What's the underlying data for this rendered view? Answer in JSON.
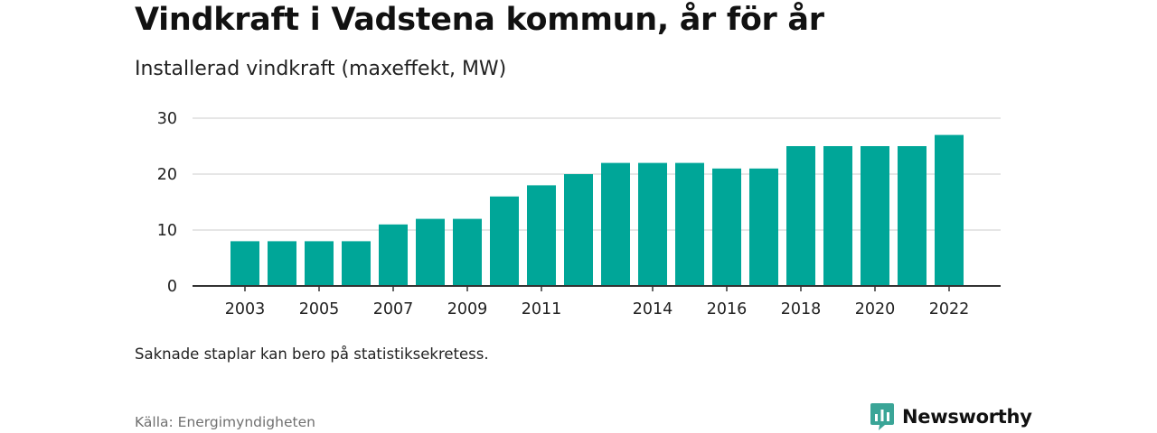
{
  "colors": {
    "bar": "#00a698",
    "grid": "#dddddd",
    "axis": "#333333",
    "brand": "#3aa597"
  },
  "chart_data": {
    "type": "bar",
    "title": "Vindkraft i Vadstena kommun, år för år",
    "subtitle": "Installerad vindkraft (maxeffekt, MW)",
    "xlabel": "",
    "ylabel": "",
    "ylim": [
      0,
      30
    ],
    "yticks": [
      "0",
      "10",
      "20",
      "30"
    ],
    "grid": true,
    "categories": [
      "2003",
      "2004",
      "2005",
      "2006",
      "2007",
      "2008",
      "2009",
      "2010",
      "2011",
      "2012",
      "2013",
      "2014",
      "2015",
      "2016",
      "2017",
      "2018",
      "2019",
      "2020",
      "2021",
      "2022"
    ],
    "values": [
      8,
      8,
      8,
      8,
      11,
      12,
      12,
      16,
      18,
      20,
      22,
      22,
      22,
      21,
      21,
      25,
      25,
      25,
      25,
      27
    ],
    "xticks": [
      "2003",
      "2005",
      "2007",
      "2009",
      "2011",
      "2014",
      "2016",
      "2018",
      "2020",
      "2022"
    ]
  },
  "note": "Saknade staplar kan bero på statistiksekretess.",
  "source": "Källa: Energimyndigheten",
  "brand": {
    "name": "Newsworthy",
    "icon": "newsworthy-logo-icon"
  }
}
